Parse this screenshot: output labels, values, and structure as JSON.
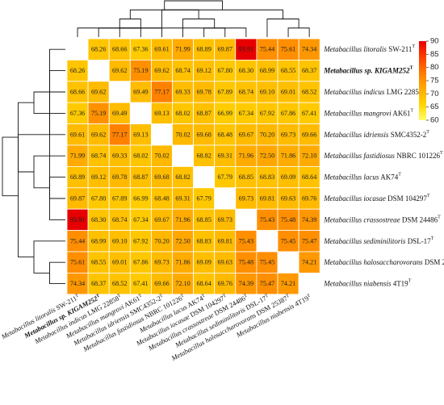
{
  "chart_data": {
    "type": "heatmap",
    "title": "",
    "xlabel": "",
    "ylabel": "",
    "labels": [
      {
        "name": "Metabacillus litoralis",
        "strain": "SW-211",
        "sup": "T",
        "bold": false
      },
      {
        "name": "Metabacillus sp. KIGAM252",
        "strain": "",
        "sup": "T",
        "bold": true
      },
      {
        "name": "Metabacillus indicus",
        "strain": "LMG 22858",
        "sup": "T",
        "bold": false
      },
      {
        "name": "Metabacillus mangrovi",
        "strain": "AK61",
        "sup": "T",
        "bold": false
      },
      {
        "name": "Metabacillus idriensis",
        "strain": "SMC4352-2",
        "sup": "T",
        "bold": false
      },
      {
        "name": "Metabacillus fastidiosus",
        "strain": "NBRC 101226",
        "sup": "T",
        "bold": false
      },
      {
        "name": "Metabacillus lacus",
        "strain": "AK74",
        "sup": "T",
        "bold": false
      },
      {
        "name": "Metabacillus iocasae",
        "strain": "DSM 104297",
        "sup": "T",
        "bold": false
      },
      {
        "name": "Metabacillus crassostreae",
        "strain": "DSM 24486",
        "sup": "T",
        "bold": false
      },
      {
        "name": "Metabacillus sediminilitoris",
        "strain": "DSL-17",
        "sup": "T",
        "bold": false
      },
      {
        "name": "Metabacillus halosaccharovorans",
        "strain": "DSM 25387",
        "sup": "T",
        "bold": false
      },
      {
        "name": "Metabacillus niabensis",
        "strain": "4T19",
        "sup": "T",
        "bold": false
      }
    ],
    "values": [
      [
        null,
        68.26,
        68.66,
        67.36,
        69.61,
        71.99,
        68.89,
        69.87,
        93.91,
        75.44,
        75.61,
        74.34
      ],
      [
        68.26,
        null,
        69.62,
        75.19,
        69.62,
        68.74,
        69.12,
        67.8,
        68.3,
        68.99,
        68.55,
        68.37
      ],
      [
        68.66,
        69.62,
        null,
        69.49,
        77.17,
        69.33,
        69.78,
        67.89,
        68.74,
        69.1,
        69.01,
        68.52
      ],
      [
        67.36,
        75.19,
        69.49,
        null,
        69.13,
        68.02,
        68.87,
        66.99,
        67.34,
        67.92,
        67.86,
        67.41
      ],
      [
        69.61,
        69.62,
        77.17,
        69.13,
        null,
        70.02,
        69.68,
        68.48,
        69.67,
        70.2,
        69.73,
        69.66
      ],
      [
        71.99,
        68.74,
        69.33,
        68.02,
        70.02,
        null,
        68.82,
        69.31,
        71.96,
        72.5,
        71.86,
        72.1
      ],
      [
        68.89,
        69.12,
        69.78,
        68.87,
        69.68,
        68.82,
        null,
        67.79,
        68.85,
        68.83,
        69.09,
        68.64
      ],
      [
        69.87,
        67.8,
        67.89,
        66.99,
        68.48,
        69.31,
        67.79,
        null,
        69.73,
        69.81,
        69.63,
        69.76
      ],
      [
        93.91,
        68.3,
        68.74,
        67.34,
        69.67,
        71.96,
        68.85,
        69.73,
        null,
        75.43,
        75.48,
        74.39
      ],
      [
        75.44,
        68.99,
        69.1,
        67.92,
        70.2,
        72.5,
        68.83,
        69.81,
        75.43,
        null,
        75.45,
        75.47
      ],
      [
        75.61,
        68.55,
        69.01,
        67.86,
        69.73,
        71.86,
        69.09,
        69.63,
        75.48,
        75.45,
        null,
        74.21
      ],
      [
        74.34,
        68.37,
        68.52,
        67.41,
        69.66,
        72.1,
        68.64,
        69.76,
        74.39,
        75.47,
        74.21,
        null
      ]
    ],
    "colorbar": {
      "min": 60,
      "max": 90,
      "ticks": [
        60,
        65,
        70,
        75,
        80,
        85,
        90
      ],
      "colors": [
        "#ffff66",
        "#ffd400",
        "#ffab00",
        "#ff7a00",
        "#ff3d00",
        "#e60000"
      ]
    },
    "diagonal": "blank",
    "dendrogram": "both sides (top and left)"
  }
}
